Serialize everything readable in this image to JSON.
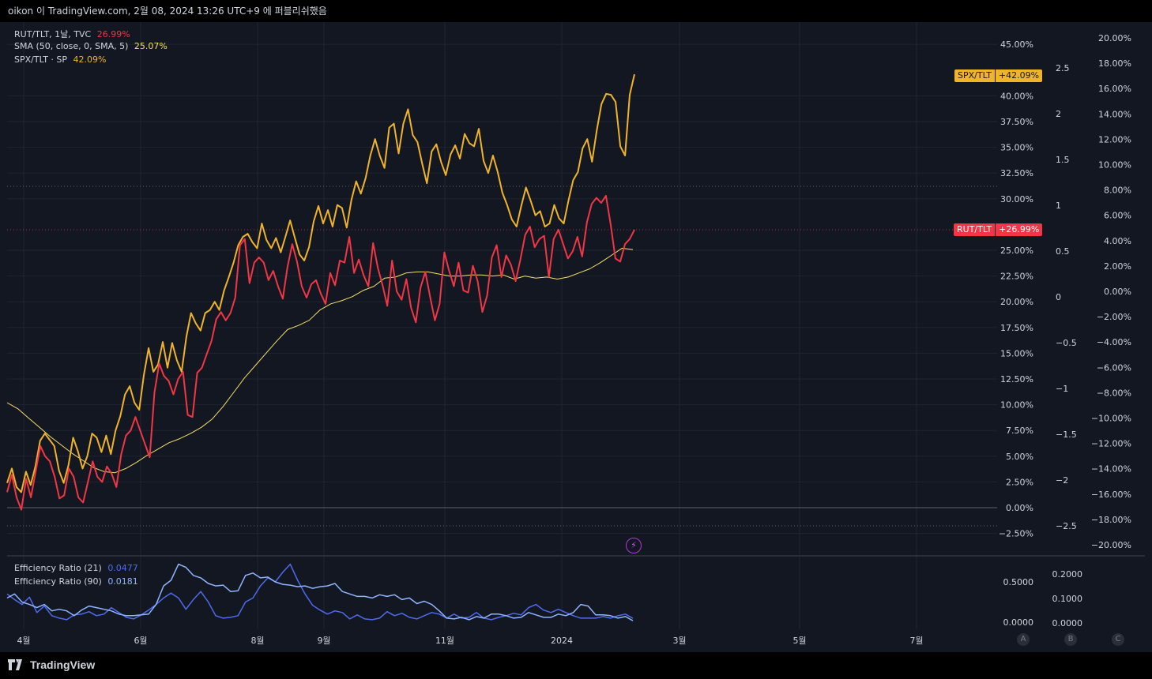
{
  "header": {
    "caption": "oikon 이 TradingView.com, 2월 08, 2024 13:26 UTC+9 에 퍼블리쉬했음"
  },
  "footer": {
    "brand": "TradingView"
  },
  "legend": {
    "rut": {
      "label": "RUT/TLT, 1날, TVC",
      "value": "26.99%",
      "color": "#f23645"
    },
    "sma": {
      "label": "SMA (50, close, 0, SMA, 5)",
      "value": "25.07%",
      "color": "#f5e06a"
    },
    "spx": {
      "label": "SPX/TLT · SP",
      "value": "42.09%",
      "color": "#f0b429"
    }
  },
  "ind_legend": {
    "er21": {
      "label": "Efficiency Ratio (21)",
      "value": "0.0477",
      "color": "#4f6bed"
    },
    "er90": {
      "label": "Efficiency Ratio (90)",
      "value": "0.0181",
      "color": "#90b4ff"
    }
  },
  "tags": {
    "spx": {
      "name": "SPX/TLT",
      "value": "+42.09%",
      "color": "#f0b429"
    },
    "rut": {
      "name": "RUT/TLT",
      "value": "+26.99%",
      "color": "#f23645"
    }
  },
  "scale_buttons": [
    "A",
    "B",
    "C"
  ],
  "chart_data": {
    "type": "line",
    "x_axis_labels": [
      "4월",
      "6월",
      "8월",
      "9월",
      "11월",
      "2024",
      "3월",
      "5월",
      "7월"
    ],
    "y_axis_main_pct": [
      "45.00%",
      "40.00%",
      "37.50%",
      "35.00%",
      "32.50%",
      "30.00%",
      "25.00%",
      "22.50%",
      "20.00%",
      "17.50%",
      "15.00%",
      "12.50%",
      "10.00%",
      "7.50%",
      "5.00%",
      "2.50%",
      "0.00%",
      "−2.50%"
    ],
    "y_axis_mid": [
      "2.5",
      "2",
      "1.5",
      "1",
      "0.5",
      "0",
      "−0.5",
      "−1",
      "−1.5",
      "−2",
      "−2.5"
    ],
    "y_axis_right_pct": [
      "20.00%",
      "18.00%",
      "16.00%",
      "14.00%",
      "12.00%",
      "10.00%",
      "8.00%",
      "6.00%",
      "4.00%",
      "2.00%",
      "0.00%",
      "−2.00%",
      "−4.00%",
      "−6.00%",
      "−8.00%",
      "−10.00%",
      "−12.00%",
      "−14.00%",
      "−16.00%",
      "−18.00%",
      "−20.00%"
    ],
    "ylim_pct": [
      -2.5,
      48
    ],
    "series": [
      {
        "name": "SPX/TLT",
        "color": "#f0b429",
        "values": [
          2.4,
          3.8,
          2.0,
          1.5,
          3.5,
          2.2,
          4.0,
          6.5,
          7.2,
          6.6,
          6.0,
          3.6,
          2.4,
          4.1,
          6.8,
          5.5,
          3.8,
          5.0,
          7.2,
          6.8,
          5.4,
          7.0,
          5.2,
          7.5,
          8.9,
          11.0,
          11.8,
          10.2,
          9.5,
          12.9,
          15.5,
          13.2,
          13.9,
          16.1,
          13.6,
          16.0,
          14.3,
          13.2,
          16.6,
          18.9,
          17.9,
          17.2,
          18.9,
          19.2,
          20.0,
          19.2,
          21.1,
          22.4,
          23.8,
          25.5,
          26.3,
          26.6,
          25.8,
          25.2,
          27.6,
          26.0,
          25.2,
          26.2,
          24.8,
          26.3,
          27.9,
          26.2,
          24.6,
          24.0,
          25.3,
          27.8,
          29.3,
          27.6,
          28.9,
          27.3,
          29.4,
          29.1,
          27.2,
          29.9,
          31.7,
          30.5,
          32.0,
          34.2,
          35.8,
          34.2,
          33.0,
          36.9,
          37.3,
          34.4,
          37.3,
          38.7,
          36.2,
          35.5,
          33.4,
          31.5,
          34.6,
          35.3,
          33.6,
          32.3,
          34.3,
          35.2,
          33.9,
          36.3,
          35.4,
          35.1,
          36.8,
          33.7,
          32.5,
          34.2,
          32.6,
          30.6,
          29.4,
          28.0,
          27.3,
          29.3,
          31.1,
          29.8,
          28.4,
          28.8,
          27.3,
          27.6,
          29.4,
          28.1,
          27.6,
          29.8,
          31.8,
          32.6,
          34.9,
          35.8,
          33.6,
          36.6,
          39.2,
          40.2,
          40.1,
          39.4,
          35.1,
          34.2,
          40.1,
          42.09
        ]
      },
      {
        "name": "RUT/TLT",
        "color": "#f23645",
        "values": [
          1.5,
          3.2,
          1.0,
          -0.2,
          2.8,
          1.0,
          3.5,
          6.0,
          5.0,
          4.5,
          3.0,
          0.9,
          1.2,
          3.8,
          3.0,
          1.0,
          0.5,
          2.5,
          4.5,
          3.0,
          2.5,
          4.0,
          3.3,
          2.0,
          5.2,
          7.0,
          7.5,
          8.8,
          7.5,
          6.2,
          4.9,
          11.2,
          14.0,
          12.8,
          12.3,
          11.0,
          12.5,
          13.2,
          9.0,
          8.8,
          13.1,
          13.6,
          14.9,
          16.2,
          18.3,
          19.0,
          18.2,
          18.9,
          20.4,
          25.5,
          26.1,
          21.8,
          23.8,
          24.3,
          23.8,
          22.1,
          23.0,
          21.5,
          20.3,
          23.4,
          25.6,
          23.9,
          21.5,
          20.4,
          21.7,
          22.1,
          20.8,
          19.8,
          22.8,
          21.6,
          24.0,
          23.8,
          26.3,
          22.8,
          24.1,
          22.6,
          21.5,
          25.7,
          23.3,
          21.6,
          19.6,
          24.0,
          21.0,
          20.2,
          22.2,
          19.4,
          18.0,
          21.4,
          22.9,
          20.5,
          18.2,
          19.8,
          24.8,
          23.0,
          21.5,
          23.8,
          21.1,
          20.9,
          23.5,
          22.0,
          19.0,
          20.6,
          24.3,
          25.5,
          22.4,
          24.5,
          23.6,
          22.0,
          24.1,
          26.5,
          27.3,
          25.3,
          26.1,
          26.4,
          22.4,
          26.1,
          27.0,
          25.6,
          24.2,
          24.9,
          26.3,
          24.4,
          27.7,
          29.5,
          30.1,
          29.6,
          30.3,
          27.5,
          24.2,
          23.9,
          25.6,
          26.1,
          26.99
        ]
      },
      {
        "name": "SMA (50, close, 0, SMA, 5)",
        "color": "#f5e06a",
        "values": [
          10.2,
          9.6,
          8.7,
          7.8,
          6.9,
          6.1,
          5.3,
          4.6,
          3.9,
          3.5,
          3.4,
          3.8,
          4.4,
          5.1,
          5.7,
          6.3,
          6.7,
          7.2,
          7.8,
          8.6,
          9.8,
          11.2,
          12.6,
          13.8,
          15.0,
          16.2,
          17.3,
          17.7,
          18.2,
          19.2,
          19.8,
          20.1,
          20.5,
          21.1,
          21.5,
          22.3,
          22.4,
          22.8,
          22.9,
          22.9,
          22.7,
          22.5,
          22.5,
          22.6,
          22.6,
          22.5,
          22.6,
          22.2,
          22.5,
          22.3,
          22.4,
          22.2,
          22.4,
          22.8,
          23.2,
          23.8,
          24.5,
          25.2,
          25.07
        ]
      }
    ],
    "indicator": {
      "y_axis_labels": [
        "0.5000",
        "0.0000"
      ],
      "y_axis_right_labels": [
        "0.2000",
        "0.1000",
        "0.0000"
      ],
      "series": [
        {
          "name": "Efficiency Ratio (21)",
          "color": "#4f6bed",
          "values": [
            0.35,
            0.28,
            0.22,
            0.31,
            0.12,
            0.2,
            0.08,
            0.05,
            0.03,
            0.09,
            0.1,
            0.13,
            0.08,
            0.1,
            0.18,
            0.12,
            0.06,
            0.04,
            0.09,
            0.15,
            0.22,
            0.3,
            0.36,
            0.3,
            0.16,
            0.28,
            0.38,
            0.25,
            0.08,
            0.05,
            0.06,
            0.08,
            0.25,
            0.3,
            0.45,
            0.55,
            0.5,
            0.62,
            0.72,
            0.52,
            0.35,
            0.21,
            0.15,
            0.1,
            0.14,
            0.12,
            0.04,
            0.09,
            0.04,
            0.03,
            0.05,
            0.13,
            0.08,
            0.11,
            0.06,
            0.04,
            0.08,
            0.12,
            0.1,
            0.05,
            0.1,
            0.05,
            0.06,
            0.12,
            0.05,
            0.03,
            0.06,
            0.08,
            0.11,
            0.09,
            0.18,
            0.22,
            0.15,
            0.12,
            0.16,
            0.12,
            0.08,
            0.05,
            0.05,
            0.05,
            0.07,
            0.05,
            0.08,
            0.1,
            0.0477
          ]
        },
        {
          "name": "Efficiency Ratio (90)",
          "color": "#90b4ff",
          "values": [
            0.3,
            0.35,
            0.25,
            0.22,
            0.18,
            0.22,
            0.14,
            0.16,
            0.14,
            0.08,
            0.15,
            0.2,
            0.18,
            0.16,
            0.14,
            0.1,
            0.08,
            0.08,
            0.09,
            0.1,
            0.22,
            0.45,
            0.52,
            0.72,
            0.68,
            0.58,
            0.55,
            0.48,
            0.45,
            0.46,
            0.38,
            0.39,
            0.58,
            0.61,
            0.55,
            0.56,
            0.5,
            0.47,
            0.46,
            0.44,
            0.45,
            0.42,
            0.44,
            0.45,
            0.48,
            0.38,
            0.35,
            0.32,
            0.32,
            0.3,
            0.34,
            0.32,
            0.34,
            0.28,
            0.3,
            0.23,
            0.26,
            0.22,
            0.14,
            0.05,
            0.04,
            0.06,
            0.03,
            0.07,
            0.05,
            0.1,
            0.1,
            0.08,
            0.05,
            0.06,
            0.12,
            0.09,
            0.06,
            0.06,
            0.1,
            0.08,
            0.12,
            0.22,
            0.2,
            0.09,
            0.09,
            0.08,
            0.05,
            0.07,
            0.0181
          ]
        }
      ]
    }
  }
}
